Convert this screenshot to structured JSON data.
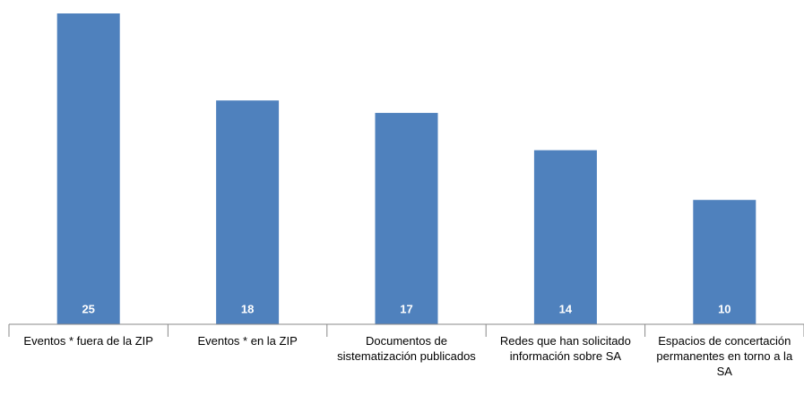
{
  "chart_data": {
    "type": "bar",
    "categories": [
      "Eventos * fuera de la ZIP",
      "Eventos * en la ZIP",
      "Documentos de sistematización publicados",
      "Redes que han solicitado información sobre SA",
      "Espacios de concertación permanentes en torno a la SA"
    ],
    "values": [
      25,
      18,
      17,
      14,
      10
    ],
    "color": "#4f81bd",
    "ylim": [
      0,
      25
    ]
  }
}
